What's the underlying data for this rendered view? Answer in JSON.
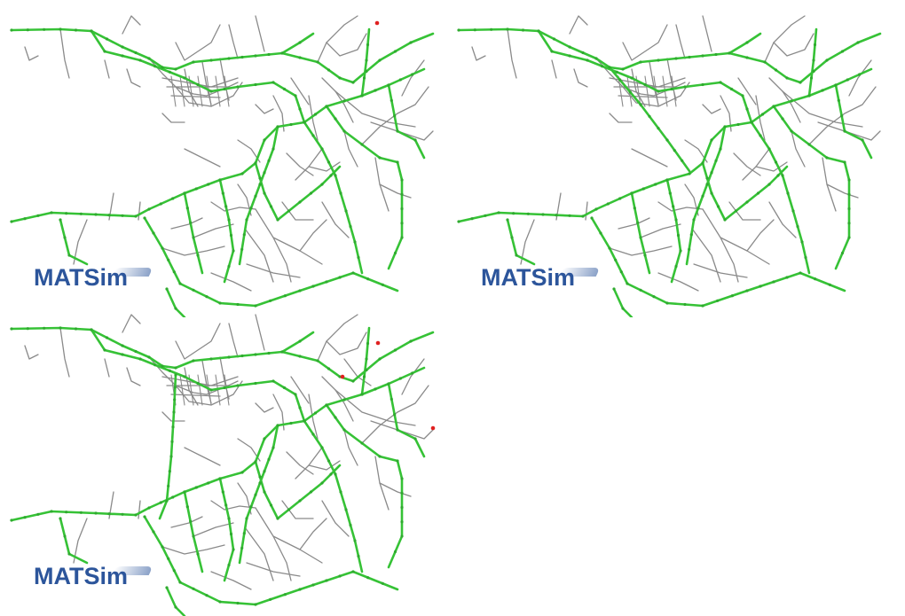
{
  "brand": {
    "logo_text": "MATSim",
    "logo_color": "#2c559b"
  },
  "colors": {
    "road": "#8a8a8a",
    "active_road": "#36c236",
    "stop": "#2faa2f",
    "alert": "#e02020"
  },
  "panels": [
    {
      "id": "panel-1",
      "variant": "base"
    },
    {
      "id": "panel-2",
      "variant": "diagonal-link"
    },
    {
      "id": "panel-3",
      "variant": "vertical-link"
    }
  ]
}
